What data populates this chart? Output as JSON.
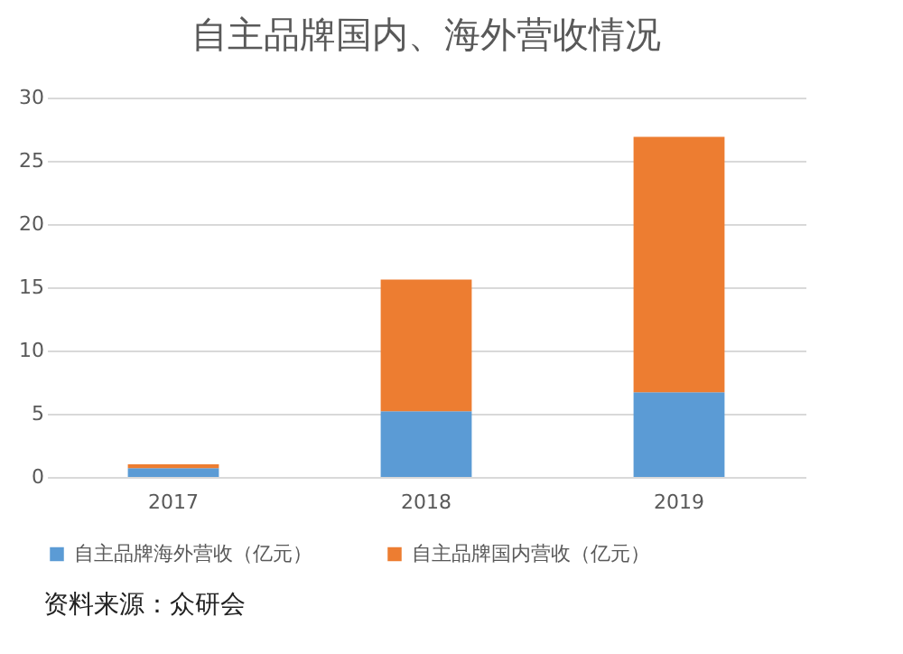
{
  "chart_data": {
    "type": "bar",
    "title": "自主品牌国内、海外营收情况",
    "categories": [
      "2017",
      "2018",
      "2019"
    ],
    "series": [
      {
        "name": "自主品牌海外营收（亿元）",
        "color": "#5b9bd5",
        "values": [
          0.7,
          5.2,
          6.7
        ]
      },
      {
        "name": "自主品牌国内营收（亿元）",
        "color": "#ed7d31",
        "values": [
          0.3,
          10.4,
          20.2
        ]
      }
    ],
    "stacked": true,
    "ylim": [
      0,
      30
    ],
    "yticks": [
      0,
      5,
      10,
      15,
      20,
      25,
      30
    ],
    "grid": "y",
    "legend": "bottom",
    "annotations": [
      "资料来源：众研会"
    ]
  }
}
